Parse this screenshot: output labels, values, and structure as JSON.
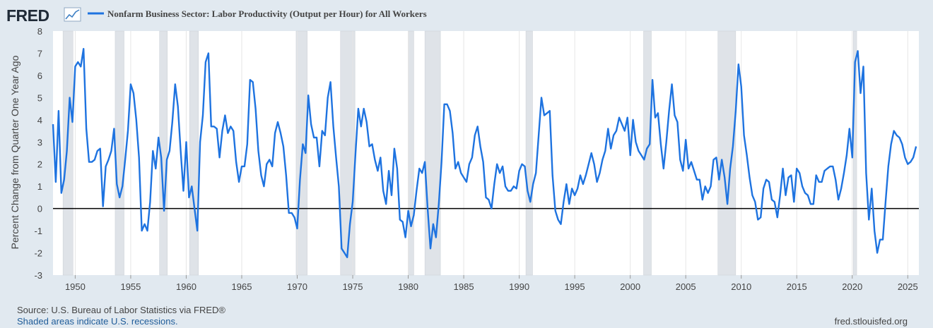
{
  "header": {
    "logo_text": "FRED",
    "logo_icon": "line-chart-icon",
    "series_title": "Nonfarm Business Sector: Labor Productivity (Output per Hour) for All Workers",
    "series_color": "#1e73e0"
  },
  "footer": {
    "source": "Source: U.S. Bureau of Labor Statistics via FRED®",
    "note": "Shaded areas indicate U.S. recessions.",
    "site": "fred.stlouisfed.org"
  },
  "chart_data": {
    "type": "line",
    "title": "Nonfarm Business Sector: Labor Productivity (Output per Hour) for All Workers",
    "ylabel": "Percent Change from Quarter One Year Ago",
    "xlabel": "",
    "x_range": [
      1948,
      2026
    ],
    "ylim": [
      -3,
      8
    ],
    "y_ticks": [
      -3,
      -2,
      -1,
      0,
      1,
      2,
      3,
      4,
      5,
      6,
      7,
      8
    ],
    "x_ticks": [
      1950,
      1955,
      1960,
      1965,
      1970,
      1975,
      1980,
      1985,
      1990,
      1995,
      2000,
      2005,
      2010,
      2015,
      2020,
      2025
    ],
    "grid": "vertical",
    "zero_line": true,
    "line_color": "#1e73e0",
    "recession_color": "#dfe3e8",
    "recessions": [
      [
        1948.9,
        1949.8
      ],
      [
        1953.6,
        1954.4
      ],
      [
        1957.6,
        1958.3
      ],
      [
        1960.3,
        1961.1
      ],
      [
        1969.9,
        1970.9
      ],
      [
        1973.9,
        1975.2
      ],
      [
        1980.0,
        1980.5
      ],
      [
        1981.5,
        1982.9
      ],
      [
        1990.6,
        1991.2
      ],
      [
        2001.2,
        2001.9
      ],
      [
        2007.9,
        2009.5
      ],
      [
        2020.1,
        2020.4
      ]
    ],
    "points": [
      [
        1948.0,
        3.8
      ],
      [
        1948.25,
        1.2
      ],
      [
        1948.5,
        4.4
      ],
      [
        1948.75,
        0.7
      ],
      [
        1949.0,
        1.3
      ],
      [
        1949.25,
        2.6
      ],
      [
        1949.5,
        5.0
      ],
      [
        1949.75,
        3.9
      ],
      [
        1950.0,
        6.4
      ],
      [
        1950.25,
        6.6
      ],
      [
        1950.5,
        6.4
      ],
      [
        1950.75,
        7.2
      ],
      [
        1951.0,
        3.6
      ],
      [
        1951.25,
        2.1
      ],
      [
        1951.5,
        2.1
      ],
      [
        1951.75,
        2.2
      ],
      [
        1952.0,
        2.6
      ],
      [
        1952.25,
        2.7
      ],
      [
        1952.5,
        0.1
      ],
      [
        1952.75,
        1.9
      ],
      [
        1953.0,
        2.2
      ],
      [
        1953.25,
        2.6
      ],
      [
        1953.5,
        3.6
      ],
      [
        1953.75,
        1.1
      ],
      [
        1954.0,
        0.5
      ],
      [
        1954.25,
        1.0
      ],
      [
        1954.5,
        2.2
      ],
      [
        1954.75,
        3.5
      ],
      [
        1955.0,
        5.6
      ],
      [
        1955.25,
        5.2
      ],
      [
        1955.5,
        4.0
      ],
      [
        1955.75,
        2.3
      ],
      [
        1956.0,
        -1.0
      ],
      [
        1956.25,
        -0.7
      ],
      [
        1956.5,
        -1.0
      ],
      [
        1956.75,
        0.3
      ],
      [
        1957.0,
        2.6
      ],
      [
        1957.25,
        1.8
      ],
      [
        1957.5,
        3.2
      ],
      [
        1957.75,
        2.3
      ],
      [
        1958.0,
        -0.1
      ],
      [
        1958.25,
        2.2
      ],
      [
        1958.5,
        2.6
      ],
      [
        1958.75,
        3.9
      ],
      [
        1959.0,
        5.6
      ],
      [
        1959.25,
        4.6
      ],
      [
        1959.5,
        2.6
      ],
      [
        1959.75,
        0.8
      ],
      [
        1960.0,
        3.0
      ],
      [
        1960.25,
        0.5
      ],
      [
        1960.5,
        1.0
      ],
      [
        1960.75,
        0.0
      ],
      [
        1961.0,
        -1.0
      ],
      [
        1961.25,
        3.0
      ],
      [
        1961.5,
        4.2
      ],
      [
        1961.75,
        6.6
      ],
      [
        1962.0,
        7.0
      ],
      [
        1962.25,
        3.7
      ],
      [
        1962.5,
        3.7
      ],
      [
        1962.75,
        3.6
      ],
      [
        1963.0,
        2.3
      ],
      [
        1963.25,
        3.5
      ],
      [
        1963.5,
        4.2
      ],
      [
        1963.75,
        3.4
      ],
      [
        1964.0,
        3.7
      ],
      [
        1964.25,
        3.5
      ],
      [
        1964.5,
        2.1
      ],
      [
        1964.75,
        1.2
      ],
      [
        1965.0,
        1.9
      ],
      [
        1965.25,
        1.9
      ],
      [
        1965.5,
        2.9
      ],
      [
        1965.75,
        5.8
      ],
      [
        1966.0,
        5.7
      ],
      [
        1966.25,
        4.5
      ],
      [
        1966.5,
        2.6
      ],
      [
        1966.75,
        1.5
      ],
      [
        1967.0,
        1.0
      ],
      [
        1967.25,
        2.0
      ],
      [
        1967.5,
        2.2
      ],
      [
        1967.75,
        1.9
      ],
      [
        1968.0,
        3.4
      ],
      [
        1968.25,
        3.9
      ],
      [
        1968.5,
        3.4
      ],
      [
        1968.75,
        2.8
      ],
      [
        1969.0,
        1.5
      ],
      [
        1969.25,
        -0.2
      ],
      [
        1969.5,
        -0.2
      ],
      [
        1969.75,
        -0.4
      ],
      [
        1970.0,
        -0.9
      ],
      [
        1970.25,
        1.3
      ],
      [
        1970.5,
        2.9
      ],
      [
        1970.75,
        2.5
      ],
      [
        1971.0,
        5.1
      ],
      [
        1971.25,
        3.8
      ],
      [
        1971.5,
        3.2
      ],
      [
        1971.75,
        3.2
      ],
      [
        1972.0,
        1.9
      ],
      [
        1972.25,
        3.5
      ],
      [
        1972.5,
        3.3
      ],
      [
        1972.75,
        5.0
      ],
      [
        1973.0,
        5.7
      ],
      [
        1973.25,
        3.7
      ],
      [
        1973.5,
        2.3
      ],
      [
        1973.75,
        1.0
      ],
      [
        1974.0,
        -1.8
      ],
      [
        1974.25,
        -2.0
      ],
      [
        1974.5,
        -2.2
      ],
      [
        1974.75,
        -0.7
      ],
      [
        1975.0,
        0.3
      ],
      [
        1975.25,
        2.5
      ],
      [
        1975.5,
        4.5
      ],
      [
        1975.75,
        3.7
      ],
      [
        1976.0,
        4.5
      ],
      [
        1976.25,
        3.9
      ],
      [
        1976.5,
        2.8
      ],
      [
        1976.75,
        2.9
      ],
      [
        1977.0,
        2.2
      ],
      [
        1977.25,
        1.7
      ],
      [
        1977.5,
        2.3
      ],
      [
        1977.75,
        0.8
      ],
      [
        1978.0,
        0.2
      ],
      [
        1978.25,
        1.7
      ],
      [
        1978.5,
        0.6
      ],
      [
        1978.75,
        2.7
      ],
      [
        1979.0,
        1.8
      ],
      [
        1979.25,
        -0.5
      ],
      [
        1979.5,
        -0.6
      ],
      [
        1979.75,
        -1.3
      ],
      [
        1980.0,
        -0.1
      ],
      [
        1980.25,
        -0.8
      ],
      [
        1980.5,
        -0.3
      ],
      [
        1980.75,
        0.8
      ],
      [
        1981.0,
        1.8
      ],
      [
        1981.25,
        1.6
      ],
      [
        1981.5,
        2.1
      ],
      [
        1981.75,
        0.0
      ],
      [
        1982.0,
        -1.8
      ],
      [
        1982.25,
        -0.7
      ],
      [
        1982.5,
        -1.3
      ],
      [
        1982.75,
        0.2
      ],
      [
        1983.0,
        2.1
      ],
      [
        1983.25,
        4.7
      ],
      [
        1983.5,
        4.7
      ],
      [
        1983.75,
        4.4
      ],
      [
        1984.0,
        3.4
      ],
      [
        1984.25,
        1.8
      ],
      [
        1984.5,
        2.1
      ],
      [
        1984.75,
        1.6
      ],
      [
        1985.0,
        1.4
      ],
      [
        1985.25,
        1.2
      ],
      [
        1985.5,
        2.0
      ],
      [
        1985.75,
        2.3
      ],
      [
        1986.0,
        3.3
      ],
      [
        1986.25,
        3.7
      ],
      [
        1986.5,
        2.8
      ],
      [
        1986.75,
        2.1
      ],
      [
        1987.0,
        0.5
      ],
      [
        1987.25,
        0.4
      ],
      [
        1987.5,
        0.0
      ],
      [
        1987.75,
        1.1
      ],
      [
        1988.0,
        2.0
      ],
      [
        1988.25,
        1.6
      ],
      [
        1988.5,
        1.9
      ],
      [
        1988.75,
        1.0
      ],
      [
        1989.0,
        0.8
      ],
      [
        1989.25,
        0.8
      ],
      [
        1989.5,
        1.0
      ],
      [
        1989.75,
        0.9
      ],
      [
        1990.0,
        1.7
      ],
      [
        1990.25,
        2.0
      ],
      [
        1990.5,
        1.9
      ],
      [
        1990.75,
        0.8
      ],
      [
        1991.0,
        0.3
      ],
      [
        1991.25,
        1.1
      ],
      [
        1991.5,
        1.6
      ],
      [
        1991.75,
        3.3
      ],
      [
        1992.0,
        5.0
      ],
      [
        1992.25,
        4.2
      ],
      [
        1992.5,
        4.3
      ],
      [
        1992.75,
        4.4
      ],
      [
        1993.0,
        1.5
      ],
      [
        1993.25,
        -0.1
      ],
      [
        1993.5,
        -0.5
      ],
      [
        1993.75,
        -0.7
      ],
      [
        1994.0,
        0.3
      ],
      [
        1994.25,
        1.1
      ],
      [
        1994.5,
        0.2
      ],
      [
        1994.75,
        0.9
      ],
      [
        1995.0,
        0.6
      ],
      [
        1995.25,
        0.9
      ],
      [
        1995.5,
        1.5
      ],
      [
        1995.75,
        1.1
      ],
      [
        1996.0,
        1.5
      ],
      [
        1996.25,
        2.0
      ],
      [
        1996.5,
        2.5
      ],
      [
        1996.75,
        2.0
      ],
      [
        1997.0,
        1.2
      ],
      [
        1997.25,
        1.6
      ],
      [
        1997.5,
        2.2
      ],
      [
        1997.75,
        2.6
      ],
      [
        1998.0,
        3.6
      ],
      [
        1998.25,
        2.7
      ],
      [
        1998.5,
        3.3
      ],
      [
        1998.75,
        3.5
      ],
      [
        1999.0,
        4.1
      ],
      [
        1999.25,
        3.8
      ],
      [
        1999.5,
        3.5
      ],
      [
        1999.75,
        4.1
      ],
      [
        2000.0,
        2.4
      ],
      [
        2000.25,
        4.0
      ],
      [
        2000.5,
        3.0
      ],
      [
        2000.75,
        2.6
      ],
      [
        2001.0,
        2.4
      ],
      [
        2001.25,
        2.2
      ],
      [
        2001.5,
        2.7
      ],
      [
        2001.75,
        2.9
      ],
      [
        2002.0,
        5.8
      ],
      [
        2002.25,
        4.1
      ],
      [
        2002.5,
        4.3
      ],
      [
        2002.75,
        2.9
      ],
      [
        2003.0,
        1.8
      ],
      [
        2003.25,
        3.0
      ],
      [
        2003.5,
        4.4
      ],
      [
        2003.75,
        5.6
      ],
      [
        2004.0,
        4.2
      ],
      [
        2004.25,
        3.9
      ],
      [
        2004.5,
        2.2
      ],
      [
        2004.75,
        1.7
      ],
      [
        2005.0,
        3.1
      ],
      [
        2005.25,
        1.8
      ],
      [
        2005.5,
        2.1
      ],
      [
        2005.75,
        1.7
      ],
      [
        2006.0,
        1.3
      ],
      [
        2006.25,
        1.3
      ],
      [
        2006.5,
        0.4
      ],
      [
        2006.75,
        1.0
      ],
      [
        2007.0,
        0.7
      ],
      [
        2007.25,
        1.0
      ],
      [
        2007.5,
        2.2
      ],
      [
        2007.75,
        2.3
      ],
      [
        2008.0,
        1.3
      ],
      [
        2008.25,
        2.2
      ],
      [
        2008.5,
        1.4
      ],
      [
        2008.75,
        0.2
      ],
      [
        2009.0,
        1.8
      ],
      [
        2009.25,
        2.8
      ],
      [
        2009.5,
        4.4
      ],
      [
        2009.75,
        6.5
      ],
      [
        2010.0,
        5.5
      ],
      [
        2010.25,
        3.3
      ],
      [
        2010.5,
        2.4
      ],
      [
        2010.75,
        1.4
      ],
      [
        2011.0,
        0.6
      ],
      [
        2011.25,
        0.3
      ],
      [
        2011.5,
        -0.5
      ],
      [
        2011.75,
        -0.4
      ],
      [
        2012.0,
        0.9
      ],
      [
        2012.25,
        1.3
      ],
      [
        2012.5,
        1.2
      ],
      [
        2012.75,
        0.4
      ],
      [
        2013.0,
        0.3
      ],
      [
        2013.25,
        -0.4
      ],
      [
        2013.5,
        0.6
      ],
      [
        2013.75,
        1.8
      ],
      [
        2014.0,
        0.6
      ],
      [
        2014.25,
        1.4
      ],
      [
        2014.5,
        1.5
      ],
      [
        2014.75,
        0.3
      ],
      [
        2015.0,
        1.8
      ],
      [
        2015.25,
        1.6
      ],
      [
        2015.5,
        1.0
      ],
      [
        2015.75,
        0.7
      ],
      [
        2016.0,
        0.6
      ],
      [
        2016.25,
        0.2
      ],
      [
        2016.5,
        0.2
      ],
      [
        2016.75,
        1.5
      ],
      [
        2017.0,
        1.2
      ],
      [
        2017.25,
        1.2
      ],
      [
        2017.5,
        1.7
      ],
      [
        2017.75,
        1.8
      ],
      [
        2018.0,
        1.9
      ],
      [
        2018.25,
        1.9
      ],
      [
        2018.5,
        1.3
      ],
      [
        2018.75,
        0.4
      ],
      [
        2019.0,
        0.9
      ],
      [
        2019.25,
        1.6
      ],
      [
        2019.5,
        2.4
      ],
      [
        2019.75,
        3.6
      ],
      [
        2020.0,
        2.3
      ],
      [
        2020.25,
        6.6
      ],
      [
        2020.5,
        7.1
      ],
      [
        2020.75,
        5.2
      ],
      [
        2021.0,
        6.4
      ],
      [
        2021.25,
        1.6
      ],
      [
        2021.5,
        -0.5
      ],
      [
        2021.75,
        0.9
      ],
      [
        2022.0,
        -1.0
      ],
      [
        2022.25,
        -2.0
      ],
      [
        2022.5,
        -1.4
      ],
      [
        2022.75,
        -1.4
      ],
      [
        2023.0,
        0.3
      ],
      [
        2023.25,
        1.9
      ],
      [
        2023.5,
        2.9
      ],
      [
        2023.75,
        3.5
      ],
      [
        2024.0,
        3.3
      ],
      [
        2024.25,
        3.2
      ],
      [
        2024.5,
        2.9
      ],
      [
        2024.75,
        2.3
      ],
      [
        2025.0,
        2.0
      ],
      [
        2025.25,
        2.1
      ],
      [
        2025.5,
        2.3
      ],
      [
        2025.75,
        2.8
      ]
    ]
  }
}
